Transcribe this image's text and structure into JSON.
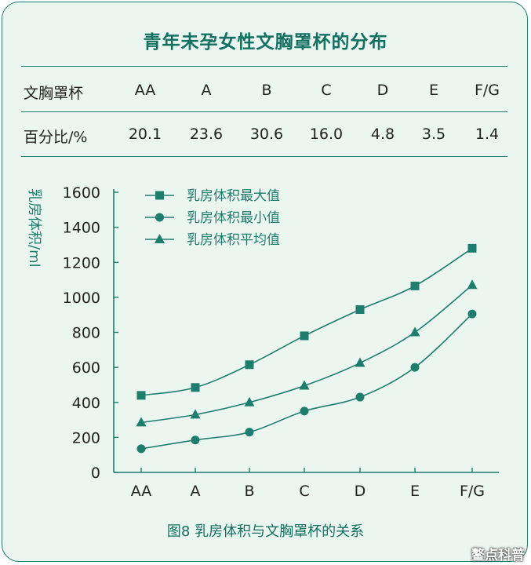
{
  "title": "青年未孕女性文胸罩杯的分布",
  "table": {
    "row1_header": "文胸罩杯",
    "row2_header": "百分比/%",
    "cups": [
      "AA",
      "A",
      "B",
      "C",
      "D",
      "E",
      "F/G"
    ],
    "percentages": [
      "20.1",
      "23.6",
      "30.6",
      "16.0",
      "4.8",
      "3.5",
      "1.4"
    ]
  },
  "chart_data": {
    "type": "line",
    "categories": [
      "AA",
      "A",
      "B",
      "C",
      "D",
      "E",
      "F/G"
    ],
    "ylabel": "乳房体积/ml",
    "ylim": [
      0,
      1600
    ],
    "yticks": [
      0,
      200,
      400,
      600,
      800,
      1000,
      1200,
      1400,
      1600
    ],
    "grid": false,
    "legend_position": "top-left",
    "series": [
      {
        "name": "乳房体积最大值",
        "marker": "square",
        "values": [
          440,
          485,
          615,
          780,
          930,
          1065,
          1280
        ]
      },
      {
        "name": "乳房体积最小值",
        "marker": "circle",
        "values": [
          135,
          185,
          230,
          350,
          430,
          600,
          905
        ]
      },
      {
        "name": "乳房体积平均值",
        "marker": "triangle",
        "values": [
          285,
          330,
          400,
          495,
          625,
          800,
          1070
        ]
      }
    ]
  },
  "caption": "图8  乳房体积与文胸罩杯的关系",
  "watermark": "鳌点科普",
  "colors": {
    "primary": "#1f7d6d",
    "background": "#ecf6f0",
    "text": "#222222"
  }
}
